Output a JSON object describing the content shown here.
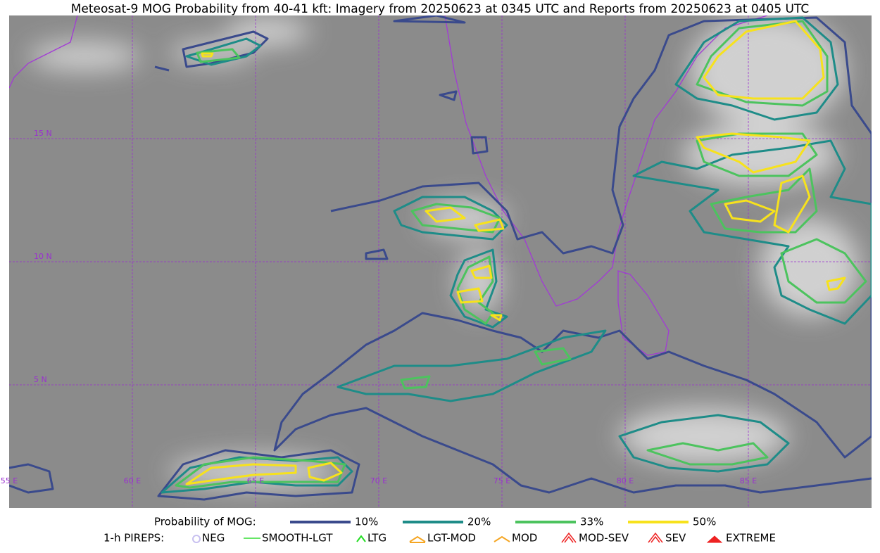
{
  "title": "Meteosat-9 MOG Probability from 40-41 kft: Imagery from 20250623 at 0345 UTC and Reports from 20250623 at 0405 UTC",
  "map": {
    "lat_labels": [
      "15 N",
      "10 N",
      "5 N"
    ],
    "lon_labels": [
      "55 E",
      "60 E",
      "65 E",
      "70 E",
      "75 E",
      "80 E",
      "85 E"
    ]
  },
  "legend": {
    "probability": {
      "label": "Probability of MOG:",
      "items": [
        {
          "label": "10%",
          "color": "#3a4a8c"
        },
        {
          "label": "20%",
          "color": "#1e8c88"
        },
        {
          "label": "33%",
          "color": "#4cc35e"
        },
        {
          "label": "50%",
          "color": "#f7e21c"
        }
      ]
    },
    "pireps": {
      "label": "1-h PIREPS:",
      "items": [
        {
          "label": "NEG",
          "color": "#c8c0f0"
        },
        {
          "label": "SMOOTH-LGT",
          "color": "#33dd33"
        },
        {
          "label": "LTG",
          "color": "#22dd22"
        },
        {
          "label": "LGT-MOD",
          "color": "#f5a623"
        },
        {
          "label": "MOD",
          "color": "#f5a623"
        },
        {
          "label": "MOD-SEV",
          "color": "#ee2222"
        },
        {
          "label": "SEV",
          "color": "#ee2222"
        },
        {
          "label": "EXTREME",
          "color": "#ee2222"
        }
      ]
    }
  }
}
